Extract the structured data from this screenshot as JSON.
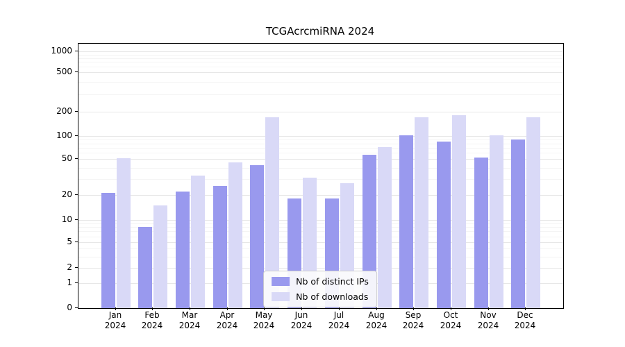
{
  "chart_data": {
    "type": "bar",
    "title": "TCGAcrcmiRNA 2024",
    "categories": [
      "Jan",
      "Feb",
      "Mar",
      "Apr",
      "May",
      "Jun",
      "Jul",
      "Aug",
      "Sep",
      "Oct",
      "Nov",
      "Dec"
    ],
    "category_year": "2024",
    "series": [
      {
        "name": "Nb of distinct IPs",
        "color": "#9999ee",
        "values": [
          21,
          8,
          22,
          25,
          43,
          18,
          18,
          57,
          101,
          84,
          52,
          90
        ]
      },
      {
        "name": "Nb of downloads",
        "color": "#d9d9f7",
        "values": [
          51,
          15,
          33,
          46,
          172,
          31,
          27,
          72,
          172,
          180,
          101,
          172
        ]
      }
    ],
    "y_ticks": [
      0,
      1,
      2,
      5,
      10,
      20,
      50,
      100,
      200,
      500,
      1000
    ],
    "y_minor_gridlines": [
      3,
      4,
      6,
      7,
      8,
      9,
      30,
      40,
      60,
      70,
      80,
      90,
      300,
      400,
      600,
      700,
      800,
      900
    ],
    "y_scale": "symlog",
    "ylim": [
      0,
      1150
    ],
    "grid": true,
    "legend_position": "lower center"
  }
}
